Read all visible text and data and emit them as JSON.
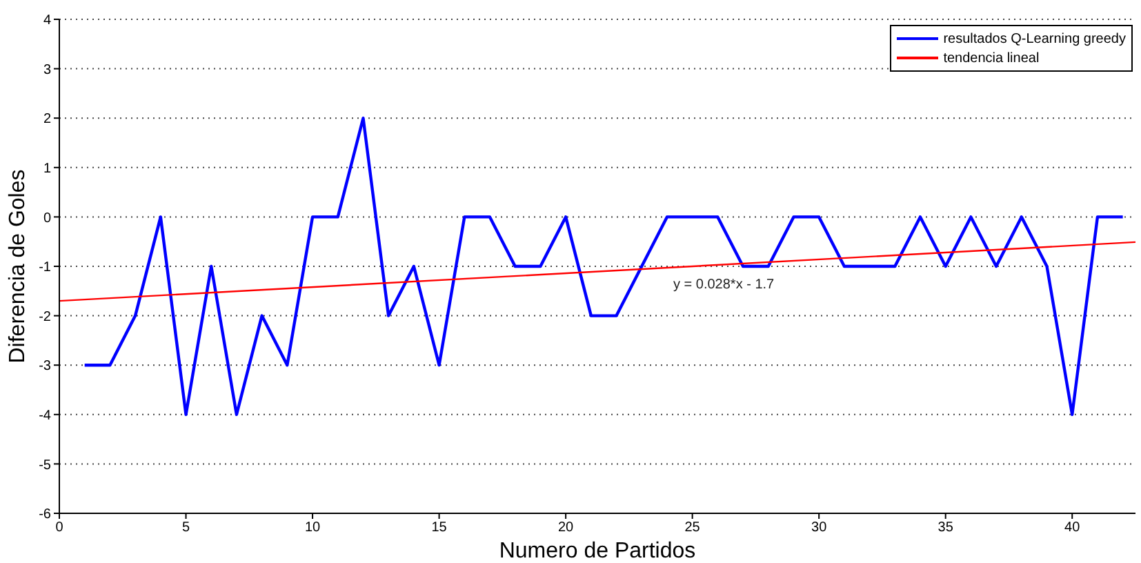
{
  "chart_data": {
    "type": "line",
    "xlabel": "Numero de Partidos",
    "ylabel": "Diferencia de Goles",
    "xlim": [
      0,
      42.5
    ],
    "xticks": [
      0,
      5,
      10,
      15,
      20,
      25,
      30,
      35,
      40
    ],
    "ylim": [
      -6,
      4
    ],
    "yticks": [
      -6,
      -5,
      -4,
      -3,
      -2,
      -1,
      0,
      1,
      2,
      3,
      4
    ],
    "grid": "y",
    "legend": "top right",
    "marker": "none",
    "line_style": "solid",
    "series": [
      {
        "name": "resultados Q-Learning greedy",
        "color": "#0000ff",
        "x": [
          1,
          2,
          3,
          4,
          5,
          6,
          7,
          8,
          9,
          10,
          11,
          12,
          13,
          14,
          15,
          16,
          17,
          18,
          19,
          20,
          21,
          22,
          23,
          24,
          25,
          26,
          27,
          28,
          29,
          30,
          31,
          32,
          33,
          34,
          35,
          36,
          37,
          38,
          39,
          40,
          41,
          42
        ],
        "values": [
          -3,
          -3,
          -2,
          0,
          -4,
          -1,
          -4,
          -2,
          -3,
          0,
          0,
          2,
          -2,
          -1,
          -3,
          0,
          0,
          -1,
          -1,
          0,
          -2,
          -2,
          -1,
          0,
          0,
          0,
          -1,
          -1,
          0,
          0,
          -1,
          -1,
          -1,
          0,
          -1,
          0,
          -1,
          0,
          -1,
          -4,
          0,
          0
        ]
      },
      {
        "name": "tendencia lineal",
        "color": "#ff0000",
        "x": [
          0,
          42.5
        ],
        "values": [
          -1.7,
          -0.51
        ]
      }
    ],
    "annotations": [
      "y = 0.028*x - 1.7"
    ]
  }
}
